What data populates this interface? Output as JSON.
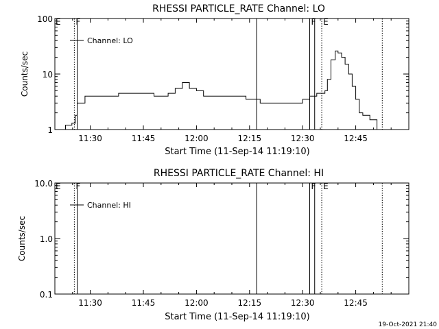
{
  "footer_timestamp": "19-Oct-2021 21:40",
  "chart_data": [
    {
      "type": "line",
      "title": "RHESSI PARTICLE_RATE Channel: LO",
      "xlabel": "Start Time (11-Sep-14 11:19:10)",
      "ylabel": "Counts/sec",
      "y_scale": "log",
      "ylim": [
        1,
        100
      ],
      "y_ticks": [
        1,
        10,
        100
      ],
      "y_tick_labels": [
        "1",
        "10",
        "100"
      ],
      "xlim_minutes": [
        680,
        780
      ],
      "x_ticks": [
        690,
        705,
        720,
        735,
        750,
        765
      ],
      "x_tick_labels": [
        "11:30",
        "11:45",
        "12:00",
        "12:15",
        "12:30",
        "12:45"
      ],
      "legend": {
        "entries": [
          "Channel: LO"
        ],
        "position": "top-left"
      },
      "markers": [
        {
          "t": 685.5,
          "style": "dotted",
          "label": "F"
        },
        {
          "t": 686.3,
          "style": "solid",
          "label": ""
        },
        {
          "t": 737.0,
          "style": "solid",
          "label": ""
        },
        {
          "t": 752.0,
          "style": "solid",
          "label": "F"
        },
        {
          "t": 753.4,
          "style": "solid",
          "label": ""
        },
        {
          "t": 755.4,
          "style": "dotted",
          "label": "E"
        },
        {
          "t": 772.5,
          "style": "dotted",
          "label": ""
        }
      ],
      "corner_label": "E",
      "series": [
        {
          "x": [
            680,
            681.5,
            683,
            684.8,
            685.8,
            686.3,
            687,
            688.5,
            690,
            692,
            694,
            696,
            698,
            700,
            702,
            704,
            706,
            708,
            710,
            712,
            714,
            716,
            718,
            720,
            722,
            724,
            726,
            728,
            730,
            732,
            734,
            736,
            738,
            740,
            742,
            744,
            746,
            748,
            750,
            752,
            754,
            755.5,
            756.3,
            757,
            758,
            759.2,
            760,
            761,
            762,
            763,
            764,
            765,
            766,
            767,
            768,
            769,
            770,
            771,
            772,
            773
          ],
          "y": [
            1,
            1,
            1.2,
            1.3,
            1.8,
            3,
            3,
            4,
            4,
            4,
            4,
            4,
            4.5,
            4.5,
            4.5,
            4.5,
            4.5,
            4,
            4,
            4.5,
            5.5,
            7,
            5.5,
            5,
            4,
            4,
            4,
            4,
            4,
            4,
            3.5,
            3.5,
            3,
            3,
            3,
            3,
            3,
            3,
            3.5,
            4,
            4.5,
            4.5,
            5,
            8,
            18,
            26,
            24,
            20,
            15,
            10,
            6,
            3.5,
            2,
            1.8,
            1.8,
            1.5,
            1.5,
            1,
            1,
            1
          ]
        }
      ]
    },
    {
      "type": "line",
      "title": "RHESSI PARTICLE_RATE Channel: HI",
      "xlabel": "Start Time (11-Sep-14 11:19:10)",
      "ylabel": "Counts/sec",
      "y_scale": "log",
      "ylim": [
        0.1,
        10
      ],
      "y_ticks": [
        0.1,
        1,
        10
      ],
      "y_tick_labels": [
        "0.1",
        "1.0",
        "10.0"
      ],
      "xlim_minutes": [
        680,
        780
      ],
      "x_ticks": [
        690,
        705,
        720,
        735,
        750,
        765
      ],
      "x_tick_labels": [
        "11:30",
        "11:45",
        "12:00",
        "12:15",
        "12:30",
        "12:45"
      ],
      "legend": {
        "entries": [
          "Channel: HI"
        ],
        "position": "top-left"
      },
      "markers": [
        {
          "t": 685.5,
          "style": "dotted",
          "label": "F"
        },
        {
          "t": 686.3,
          "style": "solid",
          "label": ""
        },
        {
          "t": 737.0,
          "style": "solid",
          "label": ""
        },
        {
          "t": 752.0,
          "style": "solid",
          "label": "F"
        },
        {
          "t": 753.4,
          "style": "solid",
          "label": ""
        },
        {
          "t": 755.4,
          "style": "dotted",
          "label": "E"
        },
        {
          "t": 772.5,
          "style": "dotted",
          "label": ""
        }
      ],
      "corner_label": "E",
      "series": [
        {
          "x": [],
          "y": []
        }
      ]
    }
  ]
}
